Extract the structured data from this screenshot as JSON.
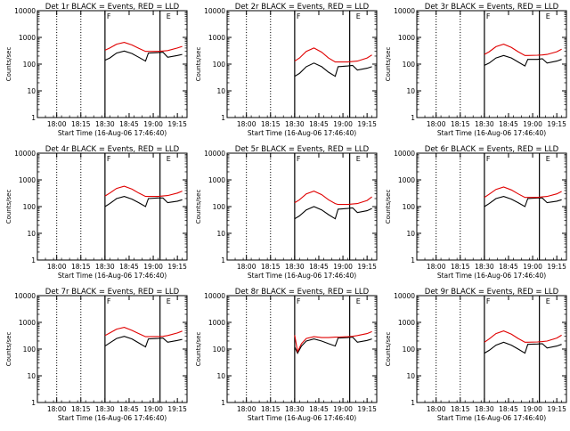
{
  "chart_data": [
    {
      "type": "line",
      "title": "Det 1r BLACK = Events, RED = LLD",
      "xlabel": "Start Time (16-Aug-06 17:46:40)",
      "ylabel": "Counts/sec",
      "xticks": [
        "18:00",
        "18:15",
        "18:30",
        "18:45",
        "19:00",
        "19:15"
      ],
      "yticks": [
        "1",
        "10",
        "100",
        "1000",
        "10000"
      ],
      "ylim": [
        1,
        10000
      ],
      "yscale": "log",
      "annotations": [
        {
          "text": "F",
          "x": "18:30"
        },
        {
          "text": "E",
          "x": "19:07"
        }
      ],
      "series": [
        {
          "color": "#000000",
          "x": [
            18.5,
            18.55,
            18.62,
            18.7,
            18.78,
            18.85,
            18.92,
            18.95,
            19.05,
            19.1,
            19.15,
            19.25,
            19.3
          ],
          "y": [
            140,
            170,
            260,
            310,
            250,
            180,
            130,
            260,
            270,
            280,
            180,
            210,
            230
          ]
        },
        {
          "color": "#e00000",
          "x": [
            18.5,
            18.55,
            18.62,
            18.7,
            18.78,
            18.85,
            18.92,
            18.95,
            19.05,
            19.1,
            19.15,
            19.25,
            19.3
          ],
          "y": [
            330,
            400,
            560,
            650,
            520,
            390,
            300,
            300,
            300,
            310,
            320,
            400,
            460
          ]
        }
      ]
    },
    {
      "type": "line",
      "title": "Det 2r BLACK = Events, RED = LLD",
      "xlabel": "Start Time (16-Aug-06 17:46:40)",
      "ylabel": "Counts/sec",
      "xticks": [
        "18:00",
        "18:15",
        "18:30",
        "18:45",
        "19:00",
        "19:15"
      ],
      "yticks": [
        "1",
        "10",
        "100",
        "1000",
        "10000"
      ],
      "ylim": [
        1,
        10000
      ],
      "yscale": "log",
      "annotations": [
        {
          "text": "F",
          "x": "18:30"
        },
        {
          "text": "E",
          "x": "19:07"
        }
      ],
      "series": [
        {
          "color": "#000000",
          "x": [
            18.5,
            18.55,
            18.62,
            18.7,
            18.78,
            18.85,
            18.92,
            18.95,
            19.05,
            19.1,
            19.15,
            19.25,
            19.3
          ],
          "y": [
            35,
            45,
            80,
            110,
            80,
            50,
            35,
            80,
            85,
            90,
            60,
            70,
            80
          ]
        },
        {
          "color": "#e00000",
          "x": [
            18.5,
            18.55,
            18.62,
            18.7,
            18.78,
            18.85,
            18.92,
            18.95,
            19.05,
            19.1,
            19.15,
            19.25,
            19.3
          ],
          "y": [
            130,
            170,
            300,
            400,
            280,
            170,
            120,
            120,
            120,
            125,
            130,
            170,
            220
          ]
        }
      ]
    },
    {
      "type": "line",
      "title": "Det 3r BLACK = Events, RED = LLD",
      "xlabel": "Start Time (16-Aug-06 17:46:40)",
      "ylabel": "Counts/sec",
      "xticks": [
        "18:00",
        "18:15",
        "18:30",
        "18:45",
        "19:00",
        "19:15"
      ],
      "yticks": [
        "1",
        "10",
        "100",
        "1000",
        "10000"
      ],
      "ylim": [
        1,
        10000
      ],
      "yscale": "log",
      "annotations": [
        {
          "text": "F",
          "x": "18:30"
        },
        {
          "text": "E",
          "x": "19:07"
        }
      ],
      "series": [
        {
          "color": "#000000",
          "x": [
            18.5,
            18.55,
            18.62,
            18.7,
            18.78,
            18.85,
            18.92,
            18.95,
            19.05,
            19.1,
            19.15,
            19.25,
            19.3
          ],
          "y": [
            90,
            110,
            170,
            210,
            170,
            120,
            85,
            150,
            150,
            160,
            110,
            130,
            150
          ]
        },
        {
          "color": "#e00000",
          "x": [
            18.5,
            18.55,
            18.62,
            18.7,
            18.78,
            18.85,
            18.92,
            18.95,
            19.05,
            19.1,
            19.15,
            19.25,
            19.3
          ],
          "y": [
            230,
            290,
            450,
            560,
            420,
            290,
            210,
            210,
            215,
            220,
            230,
            290,
            360
          ]
        }
      ]
    },
    {
      "type": "line",
      "title": "Det 4r BLACK = Events, RED = LLD",
      "xlabel": "Start Time (16-Aug-06 17:46:40)",
      "ylabel": "Counts/sec",
      "xticks": [
        "18:00",
        "18:15",
        "18:30",
        "18:45",
        "19:00",
        "19:15"
      ],
      "yticks": [
        "1",
        "10",
        "100",
        "1000",
        "10000"
      ],
      "ylim": [
        1,
        10000
      ],
      "yscale": "log",
      "annotations": [
        {
          "text": "F",
          "x": "18:30"
        },
        {
          "text": "E",
          "x": "19:07"
        }
      ],
      "series": [
        {
          "color": "#000000",
          "x": [
            18.5,
            18.55,
            18.62,
            18.7,
            18.78,
            18.85,
            18.92,
            18.95,
            19.05,
            19.1,
            19.15,
            19.25,
            19.3
          ],
          "y": [
            100,
            130,
            200,
            240,
            190,
            140,
            100,
            200,
            210,
            210,
            140,
            160,
            180
          ]
        },
        {
          "color": "#e00000",
          "x": [
            18.5,
            18.55,
            18.62,
            18.7,
            18.78,
            18.85,
            18.92,
            18.95,
            19.05,
            19.1,
            19.15,
            19.25,
            19.3
          ],
          "y": [
            250,
            320,
            480,
            580,
            450,
            320,
            240,
            240,
            240,
            250,
            260,
            320,
            380
          ]
        }
      ]
    },
    {
      "type": "line",
      "title": "Det 5r BLACK = Events, RED = LLD",
      "xlabel": "Start Time (16-Aug-06 17:46:40)",
      "ylabel": "Counts/sec",
      "xticks": [
        "18:00",
        "18:15",
        "18:30",
        "18:45",
        "19:00",
        "19:15"
      ],
      "yticks": [
        "1",
        "10",
        "100",
        "1000",
        "10000"
      ],
      "ylim": [
        1,
        10000
      ],
      "yscale": "log",
      "annotations": [
        {
          "text": "F",
          "x": "18:30"
        },
        {
          "text": "E",
          "x": "19:07"
        }
      ],
      "series": [
        {
          "color": "#000000",
          "x": [
            18.5,
            18.55,
            18.62,
            18.7,
            18.78,
            18.85,
            18.92,
            18.95,
            19.05,
            19.1,
            19.15,
            19.25,
            19.3
          ],
          "y": [
            35,
            45,
            75,
            100,
            75,
            50,
            35,
            80,
            85,
            90,
            60,
            70,
            85
          ]
        },
        {
          "color": "#e00000",
          "x": [
            18.5,
            18.55,
            18.62,
            18.7,
            18.78,
            18.85,
            18.92,
            18.95,
            19.05,
            19.1,
            19.15,
            19.25,
            19.3
          ],
          "y": [
            140,
            180,
            300,
            380,
            280,
            180,
            130,
            120,
            120,
            125,
            130,
            170,
            230
          ]
        }
      ]
    },
    {
      "type": "line",
      "title": "Det 6r BLACK = Events, RED = LLD",
      "xlabel": "Start Time (16-Aug-06 17:46:40)",
      "ylabel": "Counts/sec",
      "xticks": [
        "18:00",
        "18:15",
        "18:30",
        "18:45",
        "19:00",
        "19:15"
      ],
      "yticks": [
        "1",
        "10",
        "100",
        "1000",
        "10000"
      ],
      "ylim": [
        1,
        10000
      ],
      "yscale": "log",
      "annotations": [
        {
          "text": "F",
          "x": "18:30"
        },
        {
          "text": "E",
          "x": "19:07"
        }
      ],
      "series": [
        {
          "color": "#000000",
          "x": [
            18.5,
            18.55,
            18.62,
            18.7,
            18.78,
            18.85,
            18.92,
            18.95,
            19.05,
            19.1,
            19.15,
            19.25,
            19.3
          ],
          "y": [
            100,
            130,
            200,
            240,
            190,
            140,
            100,
            200,
            210,
            210,
            140,
            160,
            180
          ]
        },
        {
          "color": "#e00000",
          "x": [
            18.5,
            18.55,
            18.62,
            18.7,
            18.78,
            18.85,
            18.92,
            18.95,
            19.05,
            19.1,
            19.15,
            19.25,
            19.3
          ],
          "y": [
            220,
            290,
            440,
            540,
            420,
            300,
            220,
            220,
            220,
            230,
            240,
            300,
            370
          ]
        }
      ]
    },
    {
      "type": "line",
      "title": "Det 7r BLACK = Events, RED = LLD",
      "xlabel": "Start Time (16-Aug-06 17:46:40)",
      "ylabel": "Counts/sec",
      "xticks": [
        "18:00",
        "18:15",
        "18:30",
        "18:45",
        "19:00",
        "19:15"
      ],
      "yticks": [
        "1",
        "10",
        "100",
        "1000",
        "10000"
      ],
      "ylim": [
        1,
        10000
      ],
      "yscale": "log",
      "annotations": [
        {
          "text": "F",
          "x": "18:30"
        },
        {
          "text": "E",
          "x": "19:07"
        }
      ],
      "series": [
        {
          "color": "#000000",
          "x": [
            18.5,
            18.55,
            18.62,
            18.7,
            18.78,
            18.85,
            18.92,
            18.95,
            19.05,
            19.1,
            19.15,
            19.25,
            19.3
          ],
          "y": [
            130,
            170,
            250,
            300,
            240,
            170,
            120,
            240,
            250,
            260,
            180,
            210,
            230
          ]
        },
        {
          "color": "#e00000",
          "x": [
            18.5,
            18.55,
            18.62,
            18.7,
            18.78,
            18.85,
            18.92,
            18.95,
            19.05,
            19.1,
            19.15,
            19.25,
            19.3
          ],
          "y": [
            320,
            400,
            560,
            650,
            500,
            380,
            290,
            290,
            295,
            300,
            320,
            400,
            470
          ]
        }
      ]
    },
    {
      "type": "line",
      "title": "Det 8r BLACK = Events, RED = LLD",
      "xlabel": "Start Time (16-Aug-06 17:46:40)",
      "ylabel": "Counts/sec",
      "xticks": [
        "18:00",
        "18:15",
        "18:30",
        "18:45",
        "19:00",
        "19:15"
      ],
      "yticks": [
        "1",
        "10",
        "100",
        "1000",
        "10000"
      ],
      "ylim": [
        1,
        10000
      ],
      "yscale": "log",
      "annotations": [
        {
          "text": "F",
          "x": "18:30"
        },
        {
          "text": "E",
          "x": "19:07"
        }
      ],
      "series": [
        {
          "color": "#000000",
          "x": [
            18.5,
            18.53,
            18.57,
            18.62,
            18.7,
            18.78,
            18.85,
            18.92,
            18.95,
            19.05,
            19.1,
            19.15,
            19.25,
            19.3
          ],
          "y": [
            120,
            70,
            130,
            200,
            240,
            200,
            160,
            130,
            260,
            270,
            280,
            180,
            210,
            240
          ]
        },
        {
          "color": "#e00000",
          "x": [
            18.5,
            18.53,
            18.57,
            18.62,
            18.7,
            18.78,
            18.85,
            18.92,
            18.95,
            19.05,
            19.1,
            19.15,
            19.25,
            19.3
          ],
          "y": [
            330,
            80,
            160,
            250,
            290,
            270,
            270,
            280,
            280,
            290,
            300,
            320,
            380,
            450
          ]
        }
      ]
    },
    {
      "type": "line",
      "title": "Det 9r BLACK = Events, RED = LLD",
      "xlabel": "Start Time (16-Aug-06 17:46:40)",
      "ylabel": "Counts/sec",
      "xticks": [
        "18:00",
        "18:15",
        "18:30",
        "18:45",
        "19:00",
        "19:15"
      ],
      "yticks": [
        "1",
        "10",
        "100",
        "1000",
        "10000"
      ],
      "ylim": [
        1,
        10000
      ],
      "yscale": "log",
      "annotations": [
        {
          "text": "F",
          "x": "18:30"
        },
        {
          "text": "E",
          "x": "19:07"
        }
      ],
      "series": [
        {
          "color": "#000000",
          "x": [
            18.5,
            18.55,
            18.62,
            18.7,
            18.78,
            18.85,
            18.92,
            18.95,
            19.05,
            19.1,
            19.15,
            19.25,
            19.3
          ],
          "y": [
            70,
            90,
            140,
            180,
            140,
            100,
            70,
            150,
            155,
            160,
            110,
            130,
            150
          ]
        },
        {
          "color": "#e00000",
          "x": [
            18.5,
            18.55,
            18.62,
            18.7,
            18.78,
            18.85,
            18.92,
            18.95,
            19.05,
            19.1,
            19.15,
            19.25,
            19.3
          ],
          "y": [
            180,
            240,
            380,
            480,
            360,
            250,
            180,
            180,
            185,
            190,
            200,
            260,
            330
          ]
        }
      ]
    }
  ]
}
